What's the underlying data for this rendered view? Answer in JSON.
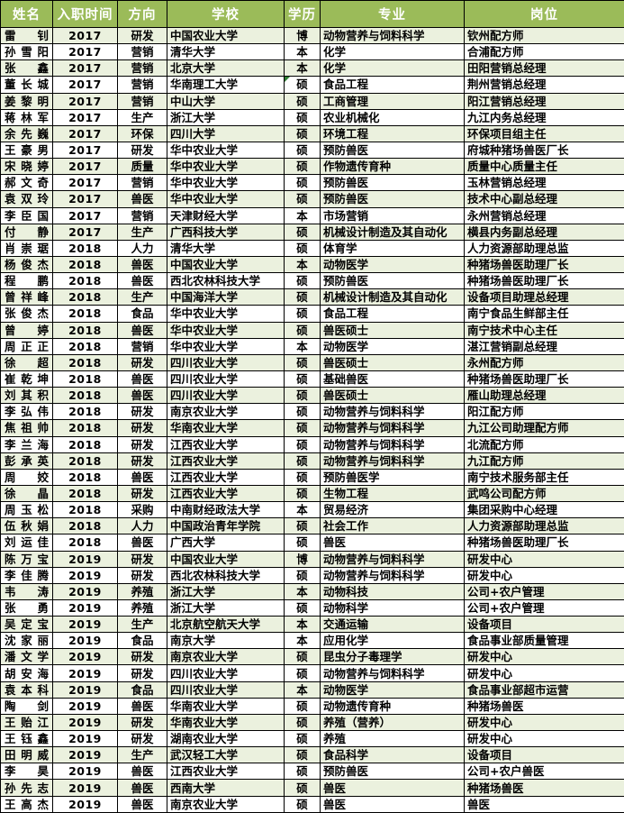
{
  "colors": {
    "header_bg": "#9BBB59",
    "header_text": "#ffffff",
    "band_row_bg": "#EBF1DE",
    "plain_row_bg": "#FFFFFF",
    "grid_border": "#000000",
    "comment_triangle": "#2E7D32"
  },
  "table": {
    "headers": {
      "name": "姓名",
      "year": "入职时间",
      "direction": "方向",
      "school": "学校",
      "degree": "学历",
      "major": "专业",
      "position": "岗位"
    },
    "rows": [
      {
        "name": "雷钊",
        "year": "2017",
        "direction": "研发",
        "school": "中国农业大学",
        "degree": "博",
        "major": "动物营养与饲料科学",
        "position": "钦州配方师"
      },
      {
        "name": "孙雪阳",
        "year": "2017",
        "direction": "营销",
        "school": "清华大学",
        "degree": "本",
        "major": "化学",
        "position": "合浦配方师"
      },
      {
        "name": "张鑫",
        "year": "2017",
        "direction": "营销",
        "school": "北京大学",
        "degree": "本",
        "major": "化学",
        "position": "田阳营销总经理"
      },
      {
        "name": "董长城",
        "year": "2017",
        "direction": "营销",
        "school": "华南理工大学",
        "degree": "硕",
        "major": "食品工程",
        "position": "荆州营销总经理",
        "note": true
      },
      {
        "name": "姜黎明",
        "year": "2017",
        "direction": "营销",
        "school": "中山大学",
        "degree": "硕",
        "major": "工商管理",
        "position": "阳江营销总经理"
      },
      {
        "name": "蒋林军",
        "year": "2017",
        "direction": "生产",
        "school": "浙江大学",
        "degree": "硕",
        "major": "农业机械化",
        "position": "九江内务总经理"
      },
      {
        "name": "余先巍",
        "year": "2017",
        "direction": "环保",
        "school": "四川大学",
        "degree": "硕",
        "major": "环境工程",
        "position": "环保项目组主任"
      },
      {
        "name": "王豪男",
        "year": "2017",
        "direction": "研发",
        "school": "华中农业大学",
        "degree": "硕",
        "major": "预防兽医",
        "position": "府城种猪场兽医厂长"
      },
      {
        "name": "宋晓婷",
        "year": "2017",
        "direction": "质量",
        "school": "华中农业大学",
        "degree": "硕",
        "major": "作物遗传育种",
        "position": "质量中心质量主任"
      },
      {
        "name": "郝文奇",
        "year": "2017",
        "direction": "营销",
        "school": "华中农业大学",
        "degree": "硕",
        "major": "预防兽医",
        "position": "玉林营销总经理"
      },
      {
        "name": "袁双玲",
        "year": "2017",
        "direction": "兽医",
        "school": "华中农业大学",
        "degree": "硕",
        "major": "预防兽医",
        "position": "技术中心副总经理"
      },
      {
        "name": "李臣国",
        "year": "2017",
        "direction": "营销",
        "school": "天津财经大学",
        "degree": "本",
        "major": "市场营销",
        "position": "永州营销总经理"
      },
      {
        "name": "付静",
        "year": "2017",
        "direction": "生产",
        "school": "广西科技大学",
        "degree": "硕",
        "major": "机械设计制造及其自动化",
        "position": "横县内务副总经理"
      },
      {
        "name": "肖崇琚",
        "year": "2018",
        "direction": "人力",
        "school": "清华大学",
        "degree": "硕",
        "major": "体育学",
        "position": "人力资源部助理总监"
      },
      {
        "name": "杨俊杰",
        "year": "2018",
        "direction": "兽医",
        "school": "中国农业大学",
        "degree": "本",
        "major": "动物医学",
        "position": "种猪场兽医助理厂长"
      },
      {
        "name": "程鹏",
        "year": "2018",
        "direction": "兽医",
        "school": "西北农林科技大学",
        "degree": "硕",
        "major": "预防兽医",
        "position": "种猪场兽医助理厂长"
      },
      {
        "name": "曾祥峰",
        "year": "2018",
        "direction": "生产",
        "school": "中国海洋大学",
        "degree": "硕",
        "major": "机械设计制造及其自动化",
        "position": "设备项目助理总经理"
      },
      {
        "name": "张俊杰",
        "year": "2018",
        "direction": "食品",
        "school": "华中农业大学",
        "degree": "硕",
        "major": "食品工程",
        "position": "南宁食品生鲜部主任"
      },
      {
        "name": "曾婷",
        "year": "2018",
        "direction": "兽医",
        "school": "华中农业大学",
        "degree": "硕",
        "major": "兽医硕士",
        "position": "南宁技术中心主任"
      },
      {
        "name": "周正正",
        "year": "2018",
        "direction": "营销",
        "school": "华中农业大学",
        "degree": "本",
        "major": "动物医学",
        "position": "湛江营销副总经理"
      },
      {
        "name": "徐超",
        "year": "2018",
        "direction": "研发",
        "school": "四川农业大学",
        "degree": "硕",
        "major": "兽医硕士",
        "position": "永州配方师"
      },
      {
        "name": "崔乾坤",
        "year": "2018",
        "direction": "兽医",
        "school": "四川农业大学",
        "degree": "硕",
        "major": "基础兽医",
        "position": "种猪场兽医助理厂长"
      },
      {
        "name": "刘其积",
        "year": "2018",
        "direction": "兽医",
        "school": "四川农业大学",
        "degree": "硕",
        "major": "兽医硕士",
        "position": "雁山助理总经理"
      },
      {
        "name": "李弘伟",
        "year": "2018",
        "direction": "研发",
        "school": "南京农业大学",
        "degree": "硕",
        "major": "动物营养与饲料科学",
        "position": "阳江配方师"
      },
      {
        "name": "焦祖帅",
        "year": "2018",
        "direction": "研发",
        "school": "华南农业大学",
        "degree": "硕",
        "major": "动物营养与饲料科学",
        "position": "九江公司助理配方师"
      },
      {
        "name": "李兰海",
        "year": "2018",
        "direction": "研发",
        "school": "江西农业大学",
        "degree": "硕",
        "major": "动物营养与饲料科学",
        "position": "北流配方师"
      },
      {
        "name": "彭承英",
        "year": "2018",
        "direction": "研发",
        "school": "江西农业大学",
        "degree": "硕",
        "major": "动物营养与饲料科学",
        "position": "九江配方师"
      },
      {
        "name": "周姣",
        "year": "2018",
        "direction": "兽医",
        "school": "江西农业大学",
        "degree": "硕",
        "major": "预防兽医学",
        "position": "南宁技术服务部主任"
      },
      {
        "name": "徐晶",
        "year": "2018",
        "direction": "研发",
        "school": "江西农业大学",
        "degree": "硕",
        "major": "生物工程",
        "position": "武鸣公司配方师"
      },
      {
        "name": "周玉松",
        "year": "2018",
        "direction": "采购",
        "school": "中南财经政法大学",
        "degree": "本",
        "major": "贸易经济",
        "position": "集团采购中心经理"
      },
      {
        "name": "伍秋娟",
        "year": "2018",
        "direction": "人力",
        "school": "中国政治青年学院",
        "degree": "硕",
        "major": "社会工作",
        "position": "人力资源部助理总监"
      },
      {
        "name": "刘运佳",
        "year": "2018",
        "direction": "兽医",
        "school": "广西大学",
        "degree": "硕",
        "major": "兽医",
        "position": "种猪场兽医助理厂长"
      },
      {
        "name": "陈万宝",
        "year": "2019",
        "direction": "研发",
        "school": "中国农业大学",
        "degree": "博",
        "major": "动物营养与饲料科学",
        "position": "研发中心"
      },
      {
        "name": "李佳腾",
        "year": "2019",
        "direction": "研发",
        "school": "西北农林科技大学",
        "degree": "硕",
        "major": "动物营养与饲料科学",
        "position": "研发中心"
      },
      {
        "name": "韦涛",
        "year": "2019",
        "direction": "养殖",
        "school": "浙江大学",
        "degree": "本",
        "major": "动物科技",
        "position": "公司+农户管理"
      },
      {
        "name": "张勇",
        "year": "2019",
        "direction": "养殖",
        "school": "浙江大学",
        "degree": "硕",
        "major": "动物科学",
        "position": "公司+农户管理"
      },
      {
        "name": "吴定宝",
        "year": "2019",
        "direction": "生产",
        "school": "北京航空航天大学",
        "degree": "本",
        "major": "交通运输",
        "position": "设备项目"
      },
      {
        "name": "沈家丽",
        "year": "2019",
        "direction": "食品",
        "school": "南京大学",
        "degree": "本",
        "major": "应用化学",
        "position": "食品事业部质量管理"
      },
      {
        "name": "潘文学",
        "year": "2019",
        "direction": "研发",
        "school": "南京农业大学",
        "degree": "硕",
        "major": "昆虫分子毒理学",
        "position": "研发中心"
      },
      {
        "name": "胡安海",
        "year": "2019",
        "direction": "研发",
        "school": "四川农业大学",
        "degree": "硕",
        "major": "动物营养与饲料科学",
        "position": "研发中心"
      },
      {
        "name": "袁本科",
        "year": "2019",
        "direction": "食品",
        "school": "四川农业大学",
        "degree": "本",
        "major": "动物医学",
        "position": "食品事业部超市运营"
      },
      {
        "name": "陶剑",
        "year": "2019",
        "direction": "兽医",
        "school": "华南农业大学",
        "degree": "硕",
        "major": "动物遗传育种",
        "position": "种猪场兽医"
      },
      {
        "name": "王贻江",
        "year": "2019",
        "direction": "研发",
        "school": "华南农业大学",
        "degree": "硕",
        "major": "养殖（营养）",
        "position": "研发中心"
      },
      {
        "name": "王钰鑫",
        "year": "2019",
        "direction": "研发",
        "school": "湖南农业大学",
        "degree": "硕",
        "major": "养殖",
        "position": "研发中心"
      },
      {
        "name": "田明威",
        "year": "2019",
        "direction": "生产",
        "school": "武汉轻工大学",
        "degree": "硕",
        "major": "食品科学",
        "position": "设备项目"
      },
      {
        "name": "李昊",
        "year": "2019",
        "direction": "兽医",
        "school": "江西农业大学",
        "degree": "硕",
        "major": "预防兽医",
        "position": "公司+农户兽医"
      },
      {
        "name": "孙先志",
        "year": "2019",
        "direction": "兽医",
        "school": "西南大学",
        "degree": "硕",
        "major": "兽医",
        "position": "种猪场兽医"
      },
      {
        "name": "王高杰",
        "year": "2019",
        "direction": "兽医",
        "school": "南京农业大学",
        "degree": "硕",
        "major": "兽医",
        "position": "兽医"
      }
    ]
  }
}
